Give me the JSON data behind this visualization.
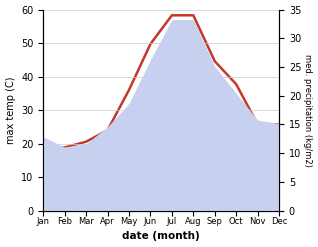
{
  "months": [
    "Jan",
    "Feb",
    "Mar",
    "Apr",
    "May",
    "Jun",
    "Jul",
    "Aug",
    "Sep",
    "Oct",
    "Nov",
    "Dec"
  ],
  "max_temp": [
    22,
    19,
    20,
    25,
    32,
    45,
    57,
    57,
    43,
    35,
    27,
    26
  ],
  "precipitation": [
    11,
    11,
    12,
    14,
    21,
    29,
    34,
    34,
    26,
    22,
    15,
    15
  ],
  "temp_color": "#c0392b",
  "precip_fill_color": "#c8d0f0",
  "temp_ylim": [
    0,
    60
  ],
  "precip_ylim": [
    0,
    35
  ],
  "temp_yticks": [
    0,
    10,
    20,
    30,
    40,
    50,
    60
  ],
  "precip_yticks": [
    0,
    5,
    10,
    15,
    20,
    25,
    30,
    35
  ],
  "ylabel_left": "max temp (C)",
  "ylabel_right": "med. precipitation (kg/m2)",
  "xlabel": "date (month)",
  "line_width": 1.8,
  "background_color": "#ffffff"
}
